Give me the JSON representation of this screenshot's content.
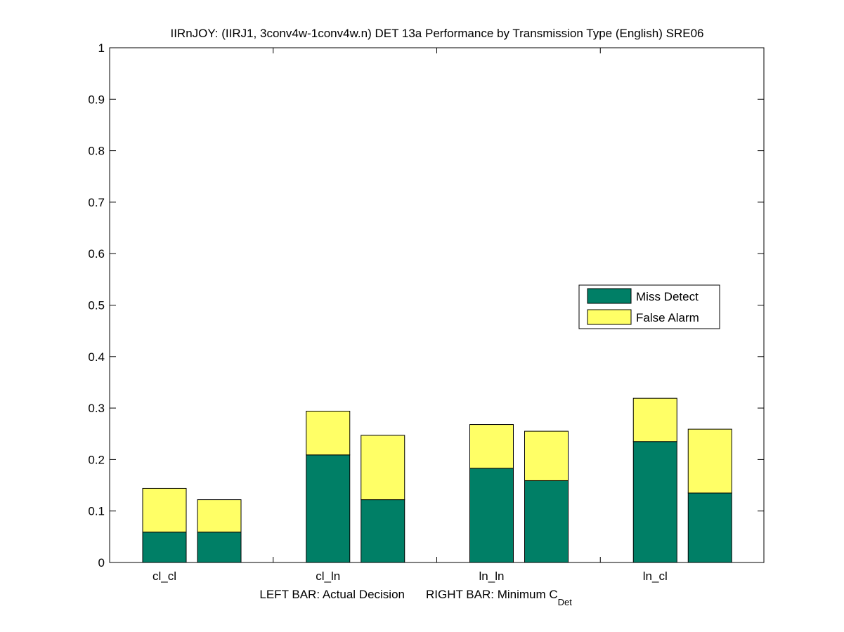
{
  "chart_data": {
    "type": "bar",
    "stacked": true,
    "grouped": true,
    "title": "IIRnJOY: (IIRJ1, 3conv4w-1conv4w.n) DET 13a Performance by Transmission Type (English) SRE06",
    "xlabel_left": "LEFT BAR: Actual Decision",
    "xlabel_right_prefix": "RIGHT BAR: Minimum C",
    "xlabel_right_subscript": "Det",
    "categories": [
      "cl_cl",
      "cl_ln",
      "ln_ln",
      "ln_cl"
    ],
    "ylim": [
      0,
      1
    ],
    "yticks": [
      "0",
      "0.1",
      "0.2",
      "0.3",
      "0.4",
      "0.5",
      "0.6",
      "0.7",
      "0.8",
      "0.9",
      "1"
    ],
    "bars_per_category": [
      "Actual Decision",
      "Minimum C_Det"
    ],
    "series": [
      {
        "name": "Miss Detect",
        "color": "#007f66",
        "actual": [
          0.059,
          0.209,
          0.183,
          0.235
        ],
        "minimum": [
          0.059,
          0.122,
          0.159,
          0.135
        ]
      },
      {
        "name": "False Alarm",
        "color": "#ffff66",
        "actual": [
          0.085,
          0.085,
          0.085,
          0.084
        ],
        "minimum": [
          0.063,
          0.125,
          0.096,
          0.124
        ]
      }
    ],
    "legend_position": "right-middle",
    "grid": false
  }
}
